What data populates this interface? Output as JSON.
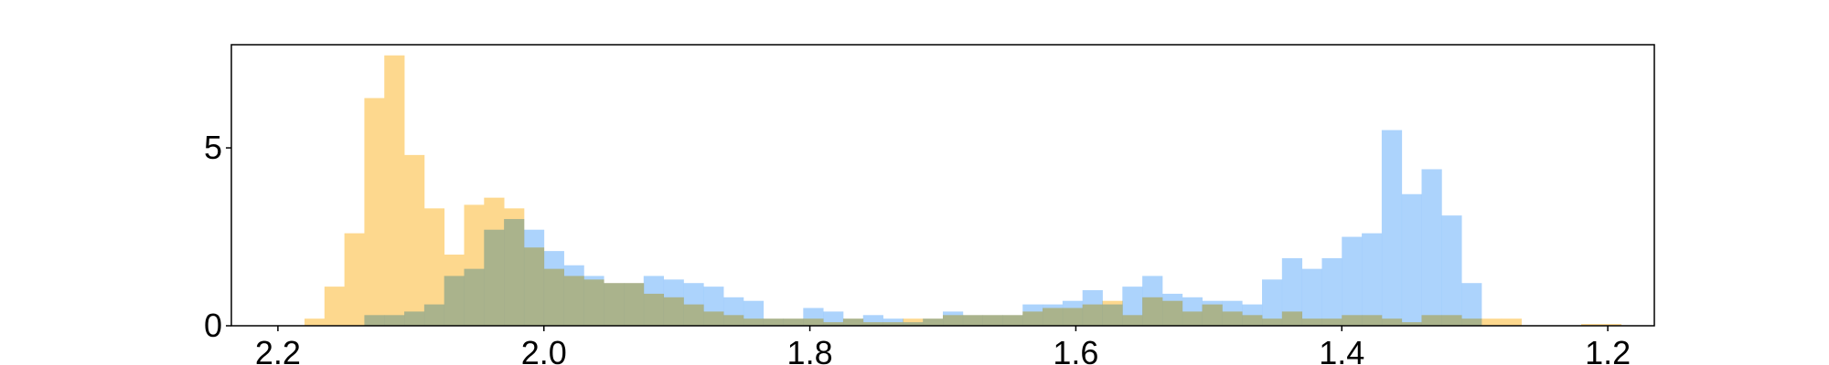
{
  "chart_data": {
    "type": "histogram",
    "title": "",
    "xlabel": "",
    "ylabel": "",
    "x_axis_inverted": true,
    "xlim": [
      2.235,
      1.165
    ],
    "ylim": [
      0,
      7.9
    ],
    "grid": false,
    "legend": "none",
    "bin_edges": [
      2.18,
      2.165,
      2.15,
      2.135,
      2.12,
      2.105,
      2.09,
      2.075,
      2.06,
      2.045,
      2.03,
      2.015,
      2.0,
      1.985,
      1.97,
      1.955,
      1.94,
      1.925,
      1.91,
      1.895,
      1.88,
      1.865,
      1.85,
      1.835,
      1.82,
      1.805,
      1.79,
      1.775,
      1.76,
      1.745,
      1.73,
      1.715,
      1.7,
      1.685,
      1.67,
      1.655,
      1.64,
      1.625,
      1.61,
      1.595,
      1.58,
      1.565,
      1.55,
      1.535,
      1.52,
      1.505,
      1.49,
      1.475,
      1.46,
      1.445,
      1.43,
      1.415,
      1.4,
      1.385,
      1.37,
      1.355,
      1.34,
      1.325,
      1.31,
      1.295,
      1.28,
      1.265,
      1.25,
      1.235,
      1.22,
      1.205,
      1.19
    ],
    "series": [
      {
        "color": "#fdd88e",
        "values": [
          0.2,
          1.1,
          2.6,
          6.4,
          7.6,
          4.8,
          3.3,
          2.0,
          3.4,
          3.6,
          3.3,
          2.2,
          1.6,
          1.4,
          1.3,
          1.2,
          1.2,
          0.9,
          0.8,
          0.6,
          0.4,
          0.3,
          0.2,
          0.2,
          0.2,
          0.2,
          0.1,
          0.2,
          0.1,
          0.1,
          0.2,
          0.2,
          0.3,
          0.3,
          0.3,
          0.3,
          0.4,
          0.5,
          0.5,
          0.6,
          0.7,
          0.3,
          0.8,
          0.7,
          0.4,
          0.6,
          0.4,
          0.3,
          0.2,
          0.4,
          0.2,
          0.2,
          0.3,
          0.3,
          0.2,
          0.1,
          0.3,
          0.3,
          0.2,
          0.2,
          0.2,
          0.0,
          0.0,
          0.0,
          0.05,
          0.05
        ]
      },
      {
        "color": "#9ecbfb",
        "values": [
          0.0,
          0.0,
          0.0,
          0.3,
          0.3,
          0.4,
          0.6,
          1.4,
          1.6,
          2.7,
          3.0,
          2.7,
          2.1,
          1.7,
          1.4,
          1.2,
          1.2,
          1.4,
          1.3,
          1.2,
          1.1,
          0.8,
          0.7,
          0.2,
          0.2,
          0.5,
          0.4,
          0.2,
          0.3,
          0.2,
          0.1,
          0.2,
          0.4,
          0.3,
          0.3,
          0.3,
          0.6,
          0.6,
          0.7,
          1.0,
          0.6,
          1.1,
          1.4,
          0.9,
          0.8,
          0.7,
          0.7,
          0.6,
          1.3,
          1.9,
          1.6,
          1.9,
          2.5,
          2.6,
          5.5,
          3.7,
          4.4,
          3.1,
          1.2,
          0.0,
          0.0,
          0.0,
          0.0,
          0.0,
          0.0,
          0.0
        ]
      }
    ],
    "x_ticks": [
      {
        "value": 2.2,
        "label": "2.2"
      },
      {
        "value": 2.0,
        "label": "2.0"
      },
      {
        "value": 1.8,
        "label": "1.8"
      },
      {
        "value": 1.6,
        "label": "1.6"
      },
      {
        "value": 1.4,
        "label": "1.4"
      },
      {
        "value": 1.2,
        "label": "1.2"
      }
    ],
    "y_ticks": [
      {
        "value": 0,
        "label": "0"
      },
      {
        "value": 5,
        "label": "5"
      }
    ]
  }
}
